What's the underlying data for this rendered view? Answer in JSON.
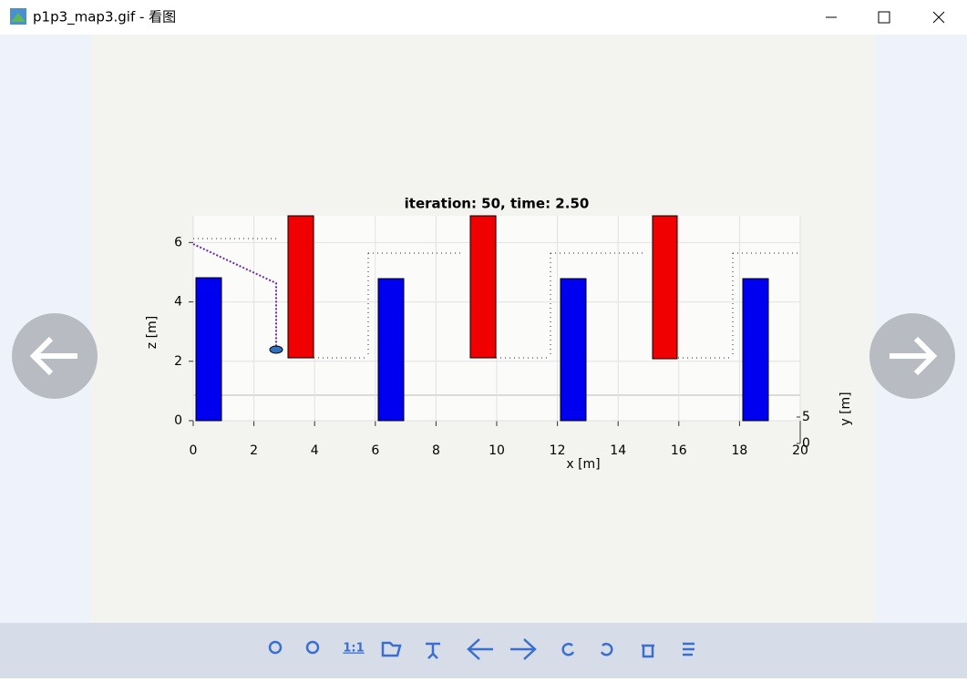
{
  "window": {
    "title": "p1p3_map3.gif - 看图"
  },
  "plot": {
    "title": "iteration: 50, time: 2.50",
    "xlabel": "x [m]",
    "zlabel": "z [m]",
    "ylabel": "y [m]",
    "xlim": [
      0,
      20
    ],
    "xticks": [
      0,
      2,
      4,
      6,
      8,
      10,
      12,
      14,
      16,
      18,
      20
    ],
    "zlim": [
      0,
      6.9
    ],
    "zticks": [
      0,
      2,
      4,
      6
    ],
    "yticks": [
      0,
      5
    ]
  },
  "toolbar": {
    "actual_size": "1:1"
  }
}
